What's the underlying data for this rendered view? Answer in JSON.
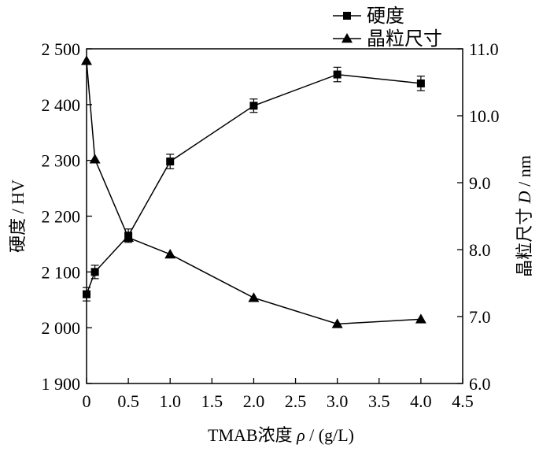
{
  "chart_data": {
    "type": "line",
    "x_axis": {
      "label_prefix": "TMAB浓度",
      "label_var": "ρ",
      "label_unit": " / (g/L)",
      "min": 0,
      "max": 4.5,
      "ticks": [
        0,
        0.5,
        1.0,
        1.5,
        2.0,
        2.5,
        3.0,
        3.5,
        4.0,
        4.5
      ],
      "tick_labels": [
        "0",
        "0.5",
        "1.0",
        "1.5",
        "2.0",
        "2.5",
        "3.0",
        "3.5",
        "4.0",
        "4.5"
      ]
    },
    "y_left": {
      "label": "硬度 / HV",
      "min": 1900,
      "max": 2500,
      "ticks": [
        1900,
        2000,
        2100,
        2200,
        2300,
        2400,
        2500
      ],
      "tick_labels": [
        "1 900",
        "2 000",
        "2 100",
        "2 200",
        "2 300",
        "2 400",
        "2 500"
      ]
    },
    "y_right": {
      "label_prefix": "晶粒尺寸",
      "label_var": "D",
      "label_unit": " / nm",
      "min": 6.0,
      "max": 11.0,
      "ticks": [
        6.0,
        7.0,
        8.0,
        9.0,
        10.0,
        11.0
      ],
      "tick_labels": [
        "6.0",
        "7.0",
        "8.0",
        "9.0",
        "10.0",
        "11.0"
      ]
    },
    "series": [
      {
        "name": "硬度",
        "axis": "left",
        "marker": "square",
        "x": [
          0,
          0.1,
          0.5,
          1.0,
          2.0,
          3.0,
          4.0
        ],
        "y": [
          2060,
          2100,
          2165,
          2298,
          2398,
          2454,
          2438
        ],
        "err": [
          12,
          12,
          12,
          13,
          12,
          13,
          13
        ]
      },
      {
        "name": "晶粒尺寸",
        "axis": "right",
        "marker": "triangle",
        "x": [
          0,
          0.1,
          0.5,
          1.0,
          2.0,
          3.0,
          4.0
        ],
        "y": [
          10.82,
          9.35,
          8.18,
          7.93,
          7.28,
          6.89,
          6.96
        ]
      }
    ],
    "legend_position": "top-right",
    "grid": false
  }
}
